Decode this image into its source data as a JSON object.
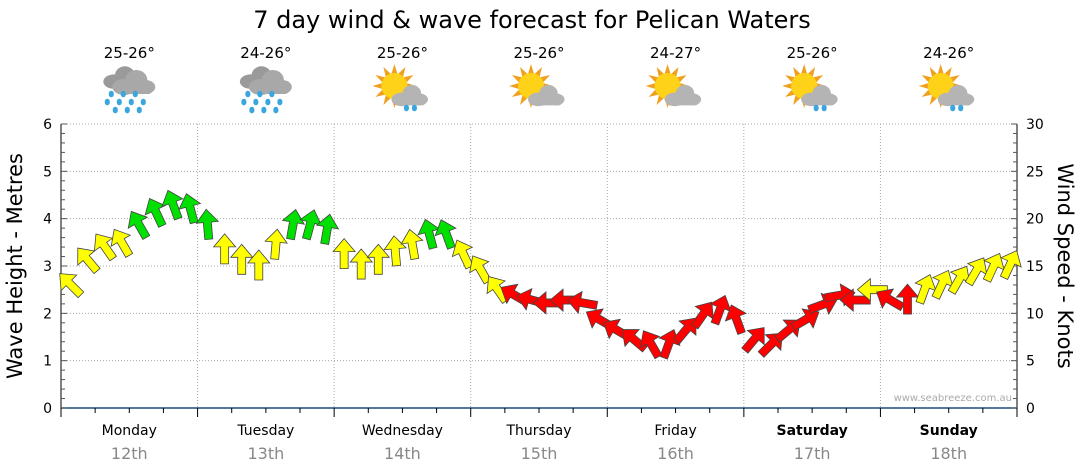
{
  "chart_data": {
    "type": "scatter",
    "title": "7 day wind & wave forecast for Pelican Waters",
    "ylabel_left": "Wave Height - Metres",
    "ylabel_right": "Wind Speed - Knots",
    "ylim_left": [
      0,
      6
    ],
    "ylim_right": [
      0,
      30
    ],
    "yticks_left": [
      "0",
      "1",
      "2",
      "3",
      "4",
      "5",
      "6"
    ],
    "yticks_right": [
      "0",
      "5",
      "10",
      "15",
      "20",
      "25",
      "30"
    ],
    "grid": true,
    "watermark": "www.seabreeze.com.au",
    "days": [
      {
        "day": "Monday",
        "date": "12th",
        "temp": "25-26°",
        "icon": "heavy-rain",
        "bold": false
      },
      {
        "day": "Tuesday",
        "date": "13th",
        "temp": "24-26°",
        "icon": "heavy-rain",
        "bold": false
      },
      {
        "day": "Wednesday",
        "date": "14th",
        "temp": "25-26°",
        "icon": "partly-cloudy-showers",
        "bold": false
      },
      {
        "day": "Thursday",
        "date": "15th",
        "temp": "25-26°",
        "icon": "partly-cloudy",
        "bold": false
      },
      {
        "day": "Friday",
        "date": "16th",
        "temp": "24-27°",
        "icon": "partly-cloudy",
        "bold": false
      },
      {
        "day": "Saturday",
        "date": "17th",
        "temp": "25-26°",
        "icon": "partly-cloudy-showers",
        "bold": true
      },
      {
        "day": "Sunday",
        "date": "18th",
        "temp": "24-26°",
        "icon": "partly-cloudy-showers",
        "bold": true
      }
    ],
    "wind_interval_hours": 3,
    "wind_speed_knots": [
      13,
      15.6,
      17,
      17.4,
      19.3,
      20.6,
      21.4,
      21,
      19.3,
      16.7,
      15.6,
      15,
      17.2,
      19.3,
      19.3,
      18.8,
      16.2,
      15.1,
      15.6,
      16.5,
      17.2,
      18.3,
      18.3,
      16.2,
      14.6,
      12.5,
      11.9,
      11.4,
      11.1,
      11.4,
      11.1,
      9.3,
      8.2,
      7.2,
      6.7,
      6.7,
      8.2,
      9.8,
      10.3,
      9.3,
      7.2,
      6.7,
      8.2,
      9.3,
      10.9,
      11.9,
      11.4,
      12.5,
      11.4,
      11.4,
      12.5,
      13,
      13.5,
      14.4,
      14.8,
      15.1
    ],
    "wind_arrow_direction_deg": [
      -45,
      -40,
      -35,
      -30,
      -30,
      -25,
      -20,
      -15,
      -5,
      0,
      0,
      0,
      5,
      10,
      15,
      10,
      0,
      0,
      0,
      -5,
      -10,
      -15,
      -20,
      -25,
      -30,
      -35,
      -60,
      -75,
      -90,
      -90,
      -80,
      -60,
      -60,
      -50,
      -30,
      20,
      40,
      35,
      20,
      -20,
      40,
      45,
      50,
      60,
      70,
      80,
      -90,
      -90,
      -60,
      0,
      20,
      25,
      30,
      30,
      25,
      25
    ],
    "color_legend": {
      "light": "#ff0000",
      "moderate": "#ffff00",
      "strong": "#00e000"
    },
    "thresholds_knots": [
      12,
      18
    ]
  }
}
